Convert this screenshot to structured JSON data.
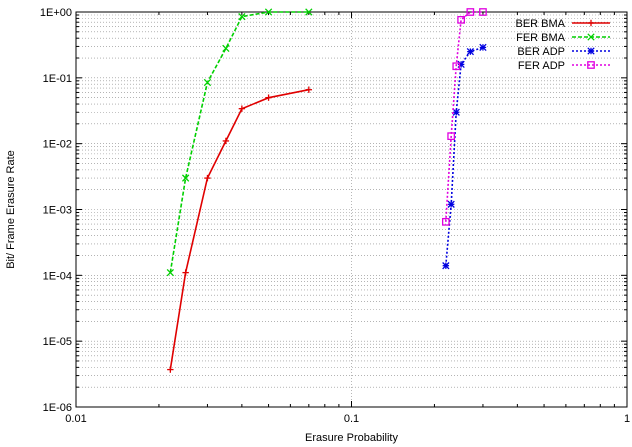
{
  "chart_data": {
    "type": "line",
    "title": "",
    "xlabel": "Erasure Probability",
    "ylabel": "Bit/ Frame Erasure Rate",
    "xscale": "log",
    "yscale": "log",
    "xlim": [
      0.01,
      1
    ],
    "ylim": [
      1e-06,
      1
    ],
    "x_tick_labels": [
      "0.01",
      "0.1",
      "1"
    ],
    "y_tick_labels": [
      "1E-06",
      "1E-05",
      "1E-04",
      "1E-03",
      "1E-02",
      "1E-01",
      "1E+00"
    ],
    "grid": true,
    "legend_position": "top-right",
    "series": [
      {
        "name": "BER BMA",
        "color": "#e00000",
        "dash": "solid",
        "marker": "plus",
        "x": [
          0.022,
          0.025,
          0.03,
          0.035,
          0.04,
          0.05,
          0.07
        ],
        "y": [
          3.7e-06,
          0.00011,
          0.003,
          0.011,
          0.034,
          0.05,
          0.066
        ]
      },
      {
        "name": "FER BMA",
        "color": "#00d000",
        "dash": "dashed",
        "marker": "cross",
        "x": [
          0.022,
          0.025,
          0.03,
          0.035,
          0.04,
          0.05,
          0.07
        ],
        "y": [
          0.00011,
          0.003,
          0.085,
          0.28,
          0.85,
          1,
          1
        ]
      },
      {
        "name": "BER ADP",
        "color": "#0000e0",
        "dash": "dotted",
        "marker": "star",
        "x": [
          0.22,
          0.23,
          0.24,
          0.25,
          0.27,
          0.3
        ],
        "y": [
          0.00014,
          0.0012,
          0.03,
          0.16,
          0.25,
          0.29
        ]
      },
      {
        "name": "FER ADP",
        "color": "#e000e0",
        "dash": "dotted",
        "marker": "square",
        "x": [
          0.22,
          0.23,
          0.24,
          0.25,
          0.27,
          0.3
        ],
        "y": [
          0.00065,
          0.013,
          0.15,
          0.76,
          1,
          1
        ]
      }
    ]
  }
}
